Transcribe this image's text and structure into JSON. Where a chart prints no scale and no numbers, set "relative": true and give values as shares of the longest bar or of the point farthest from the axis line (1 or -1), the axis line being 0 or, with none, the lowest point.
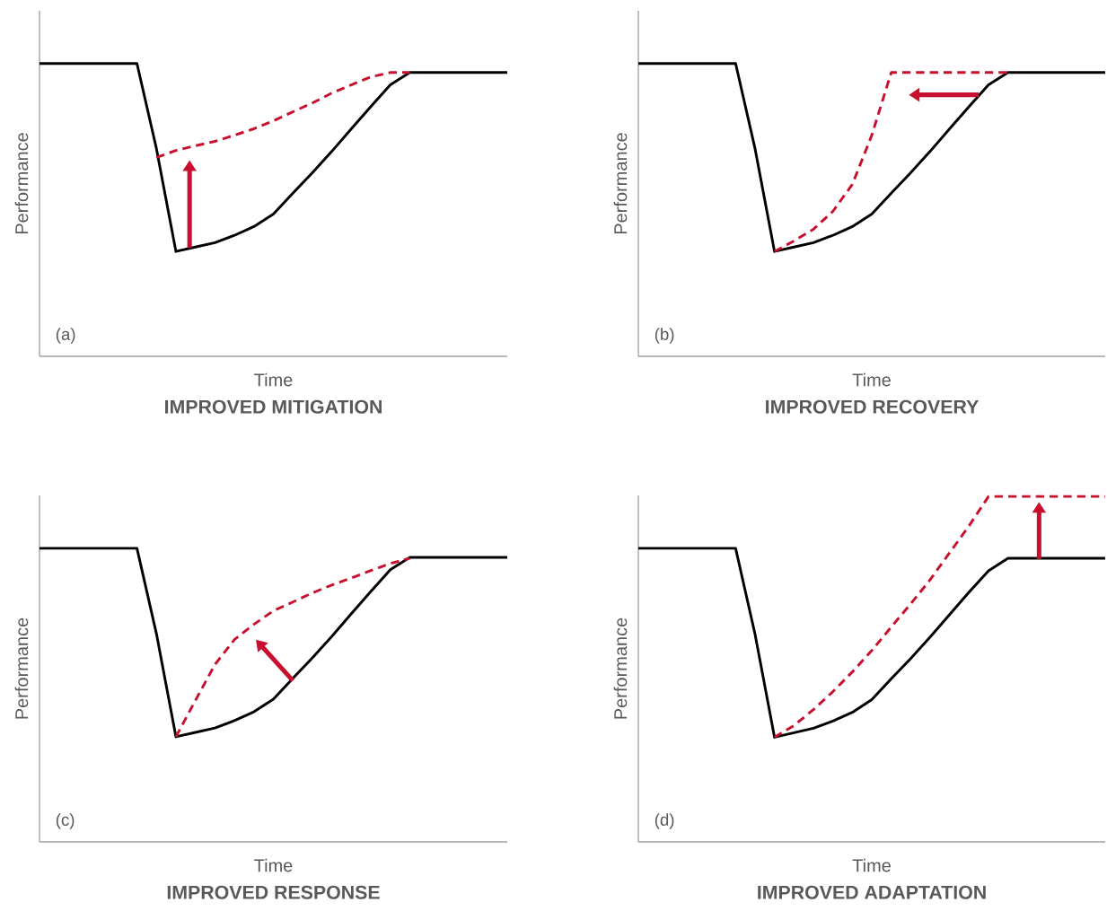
{
  "chart_data": [
    {
      "type": "line",
      "relative": true,
      "title": "IMPROVED MITIGATION",
      "xlabel": "Time",
      "ylabel": "Performance",
      "annotations": [
        "(a)"
      ],
      "categories": [
        null,
        null,
        null,
        null,
        null,
        null,
        null,
        null,
        null,
        null,
        null,
        null,
        null,
        null,
        null,
        null,
        null,
        null,
        null,
        null,
        null,
        null,
        null,
        null,
        null
      ],
      "series": [
        {
          "color": "#000000",
          "line_style": "solid",
          "values": [
            1,
            1,
            1,
            1,
            1,
            1,
            0.709,
            0.358,
            0.373,
            0.388,
            0.413,
            0.443,
            0.486,
            0.557,
            0.627,
            0.7,
            0.777,
            0.853,
            0.927,
            0.969,
            0.969,
            0.969,
            0.969,
            0.969,
            0.969
          ]
        },
        {
          "color": "#c8102e",
          "line_style": "dashed",
          "values": [
            null,
            null,
            null,
            null,
            null,
            null,
            0.679,
            0.703,
            0.719,
            0.734,
            0.755,
            0.777,
            0.804,
            0.835,
            0.865,
            0.899,
            0.927,
            0.954,
            0.969,
            0.969,
            null,
            null,
            null,
            null,
            null
          ]
        }
      ]
    },
    {
      "type": "line",
      "relative": true,
      "title": "IMPROVED RECOVERY",
      "xlabel": "Time",
      "ylabel": "Performance",
      "annotations": [
        "(b)"
      ],
      "categories": [
        null,
        null,
        null,
        null,
        null,
        null,
        null,
        null,
        null,
        null,
        null,
        null,
        null,
        null,
        null,
        null,
        null,
        null,
        null,
        null,
        null,
        null,
        null,
        null,
        null
      ],
      "series": [
        {
          "color": "#000000",
          "line_style": "solid",
          "values": [
            1,
            1,
            1,
            1,
            1,
            1,
            0.709,
            0.358,
            0.373,
            0.388,
            0.413,
            0.443,
            0.486,
            0.557,
            0.627,
            0.7,
            0.777,
            0.853,
            0.927,
            0.969,
            0.969,
            0.969,
            0.969,
            0.969,
            0.969
          ]
        },
        {
          "color": "#c8102e",
          "line_style": "dashed",
          "values": [
            null,
            null,
            null,
            null,
            null,
            null,
            null,
            0.358,
            0.394,
            0.434,
            0.495,
            0.587,
            0.755,
            0.969,
            0.969,
            0.969,
            0.969,
            0.969,
            0.969,
            0.969,
            null,
            null,
            null,
            null,
            null
          ]
        }
      ]
    },
    {
      "type": "line",
      "relative": true,
      "title": "IMPROVED RESPONSE",
      "xlabel": "Time",
      "ylabel": "Performance",
      "annotations": [
        "(c)"
      ],
      "categories": [
        null,
        null,
        null,
        null,
        null,
        null,
        null,
        null,
        null,
        null,
        null,
        null,
        null,
        null,
        null,
        null,
        null,
        null,
        null,
        null,
        null,
        null,
        null,
        null,
        null
      ],
      "series": [
        {
          "color": "#000000",
          "line_style": "solid",
          "values": [
            1,
            1,
            1,
            1,
            1,
            1,
            0.709,
            0.358,
            0.373,
            0.388,
            0.413,
            0.443,
            0.486,
            0.557,
            0.627,
            0.7,
            0.777,
            0.853,
            0.927,
            0.969,
            0.969,
            0.969,
            0.969,
            0.969,
            0.969
          ]
        },
        {
          "color": "#c8102e",
          "line_style": "dashed",
          "values": [
            null,
            null,
            null,
            null,
            null,
            null,
            null,
            0.358,
            0.482,
            0.604,
            0.689,
            0.741,
            0.787,
            0.817,
            0.848,
            0.875,
            0.899,
            0.924,
            0.948,
            0.966,
            null,
            null,
            null,
            null,
            null
          ]
        }
      ]
    },
    {
      "type": "line",
      "relative": true,
      "title": "IMPROVED ADAPTATION",
      "xlabel": "Time",
      "ylabel": "Performance",
      "annotations": [
        "(d)"
      ],
      "categories": [
        null,
        null,
        null,
        null,
        null,
        null,
        null,
        null,
        null,
        null,
        null,
        null,
        null,
        null,
        null,
        null,
        null,
        null,
        null,
        null,
        null,
        null,
        null,
        null,
        null
      ],
      "series": [
        {
          "color": "#000000",
          "line_style": "solid",
          "values": [
            0.85,
            0.85,
            0.85,
            0.85,
            0.85,
            0.85,
            0.601,
            0.303,
            0.316,
            0.329,
            0.35,
            0.375,
            0.412,
            0.472,
            0.531,
            0.593,
            0.658,
            0.723,
            0.785,
            0.821,
            0.821,
            0.821,
            0.821,
            0.821,
            0.821
          ]
        },
        {
          "color": "#c8102e",
          "line_style": "dashed",
          "values": [
            null,
            null,
            null,
            null,
            null,
            null,
            null,
            0.303,
            0.337,
            0.383,
            0.435,
            0.492,
            0.554,
            0.622,
            0.689,
            0.759,
            0.837,
            0.915,
            1,
            1,
            1,
            1,
            1,
            1,
            1
          ]
        }
      ]
    }
  ]
}
